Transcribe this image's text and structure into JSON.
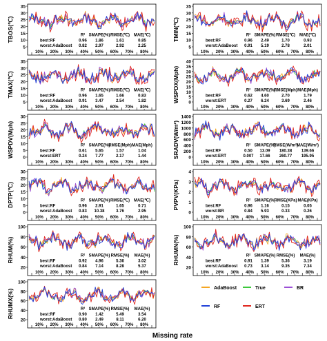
{
  "figure": {
    "xlabel": "Missing rate",
    "x_ticks": [
      "10%",
      "20%",
      "30%",
      "40%",
      "50%",
      "60%",
      "70%",
      "80%"
    ],
    "stats_header": [
      "R²",
      "SMAPE(%)",
      "RMSE(unit)",
      "MAE(unit)"
    ],
    "legend": [
      {
        "name": "AdaBoost",
        "color": "#f5a623"
      },
      {
        "name": "True",
        "color": "#3cc83c"
      },
      {
        "name": "BR",
        "color": "#9b4fd6"
      },
      {
        "name": "RF",
        "color": "#1f3fd8"
      },
      {
        "name": "ERT",
        "color": "#e0241c"
      }
    ]
  },
  "chart_data": [
    {
      "type": "line",
      "id": "tbos",
      "ylabel": "TBOS(℃)",
      "unit": "℃",
      "yticks": [
        5,
        10,
        15,
        20,
        25,
        30,
        35
      ],
      "ylim": [
        5,
        35
      ],
      "base": 23,
      "amp": 6,
      "best": {
        "label": "best:RF",
        "r2": "0.96",
        "smape": "1.86",
        "rmse": "1.61",
        "mae": "0.85"
      },
      "worst": {
        "label": "worst:AdaBoost",
        "r2": "0.82",
        "smape": "2.97",
        "rmse": "2.92",
        "mae": "2.25"
      }
    },
    {
      "type": "line",
      "id": "tmin",
      "ylabel": "TMIN(℃)",
      "unit": "℃",
      "yticks": [
        5,
        10,
        15,
        20,
        25,
        30,
        35
      ],
      "ylim": [
        5,
        35
      ],
      "base": 19,
      "amp": 6,
      "best": {
        "label": "best:RF",
        "r2": "0.96",
        "smape": "2.49",
        "rmse": "1.70",
        "mae": "0.93"
      },
      "worst": {
        "label": "worst:AdaBoost",
        "r2": "0.91",
        "smape": "5.19",
        "rmse": "2.78",
        "mae": "2.01"
      }
    },
    {
      "type": "line",
      "id": "tmax",
      "ylabel": "TMAX(℃)",
      "unit": "℃",
      "yticks": [
        5,
        10,
        15,
        20,
        25,
        30,
        35
      ],
      "ylim": [
        5,
        35
      ],
      "base": 24,
      "amp": 6,
      "best": {
        "label": "best:RF",
        "r2": "0.96",
        "smape": "1.65",
        "rmse": "1.66",
        "mae": "0.83"
      },
      "worst": {
        "label": "worst:AdaBoost",
        "r2": "0.91",
        "smape": "3.47",
        "rmse": "2.54",
        "mae": "1.82"
      }
    },
    {
      "type": "line",
      "id": "wspdx",
      "ylabel": "WSPDX(Mph)",
      "unit": "Mph",
      "yticks": [
        0,
        5,
        10,
        15,
        20,
        25,
        30,
        35,
        40
      ],
      "ylim": [
        0,
        40
      ],
      "base": 9,
      "amp": 4,
      "best": {
        "label": "best:RF",
        "r2": "0.62",
        "smape": "4.60",
        "rmse": "2.70",
        "mae": "1.79"
      },
      "worst": {
        "label": "worst:ERT",
        "r2": "0.27",
        "smape": "6.24",
        "rmse": "3.69",
        "mae": "2.46"
      }
    },
    {
      "type": "line",
      "id": "wspdv",
      "ylabel": "WSPDV(Mph)",
      "unit": "Mph",
      "yticks": [
        0,
        5,
        10,
        15,
        20,
        25,
        30
      ],
      "ylim": [
        0,
        30
      ],
      "base": 5,
      "amp": 3,
      "best": {
        "label": "best:RF",
        "r2": "0.61",
        "smape": "5.65",
        "rmse": "1.57",
        "mae": "1.04"
      },
      "worst": {
        "label": "worst:ERT",
        "r2": "0.24",
        "smape": "7.77",
        "rmse": "2.17",
        "mae": "1.44"
      }
    },
    {
      "type": "line",
      "id": "sradv",
      "ylabel": "SRADV(W/m²)",
      "unit": "W/m²",
      "yticks": [
        0,
        200,
        400,
        600,
        800,
        1000,
        1200,
        1400
      ],
      "ylim": [
        0,
        1400
      ],
      "base": 550,
      "amp": 350,
      "best": {
        "label": "best:RF",
        "r2": "0.50",
        "smape": "13.09",
        "rmse": "180.38",
        "mae": "139.66"
      },
      "worst": {
        "label": "worst:ERT",
        "r2": "0.007",
        "smape": "17.66",
        "rmse": "260.77",
        "mae": "195.95"
      }
    },
    {
      "type": "line",
      "id": "dptp",
      "ylabel": "DPTP(℃)",
      "unit": "℃",
      "yticks": [
        0,
        5,
        10,
        15,
        20,
        25,
        30
      ],
      "ylim": [
        0,
        30
      ],
      "base": 21,
      "amp": 4,
      "best": {
        "label": "best:RF",
        "r2": "0.96",
        "smape": "2.91",
        "rmse": "1.65",
        "mae": "0.71"
      },
      "worst": {
        "label": "worst:AdaBoost",
        "r2": "0.83",
        "smape": "10.38",
        "rmse": "3.76",
        "mae": "2.95"
      }
    },
    {
      "type": "line",
      "id": "pvpv",
      "ylabel": "PVPV(KPa)",
      "unit": "KPa",
      "yticks": [
        0,
        1,
        2,
        3,
        4
      ],
      "ylim": [
        0,
        4
      ],
      "base": 2.3,
      "amp": 0.5,
      "best": {
        "label": "best:RF",
        "r2": "0.96",
        "smape": "1.16",
        "rmse": "0.15",
        "mae": "0.05"
      },
      "worst": {
        "label": "worst:BR",
        "r2": "0.84",
        "smape": "5.93",
        "rmse": "0.33",
        "mae": "0.26"
      }
    },
    {
      "type": "line",
      "id": "rhum",
      "ylabel": "RHUM(%)",
      "unit": "%",
      "yticks": [
        20,
        40,
        60,
        80,
        100
      ],
      "ylim": [
        20,
        100
      ],
      "base": 66,
      "amp": 20,
      "best": {
        "label": "best:RF",
        "r2": "0.92",
        "smape": "4.96",
        "rmse": "5.36",
        "mae": "3.02"
      },
      "worst": {
        "label": "worst:AdaBoost",
        "r2": "0.84",
        "smape": "7.14",
        "rmse": "8.28",
        "mae": "5.37"
      }
    },
    {
      "type": "line",
      "id": "rhumn",
      "ylabel": "RHUMN(%)",
      "unit": "%",
      "yticks": [
        20,
        40,
        60,
        80,
        100
      ],
      "ylim": [
        20,
        100
      ],
      "base": 58,
      "amp": 24,
      "best": {
        "label": "best:RF",
        "r2": "0.91",
        "smape": "1.39",
        "rmse": "5.36",
        "mae": "3.19"
      },
      "worst": {
        "label": "worst:AdaBoost",
        "r2": "0.73",
        "smape": "3.14",
        "rmse": "9.35",
        "mae": "7.34"
      }
    },
    {
      "type": "line",
      "id": "rhumx",
      "ylabel": "RHUMX(%)",
      "unit": "%",
      "yticks": [
        20,
        40,
        60,
        80,
        100
      ],
      "ylim": [
        20,
        100
      ],
      "base": 75,
      "amp": 15,
      "best": {
        "label": "best:RF",
        "r2": "0.90",
        "smape": "1.42",
        "rmse": "5.49",
        "mae": "3.54"
      },
      "worst": {
        "label": "worst:AdaBoost",
        "r2": "0.80",
        "smape": "2.49",
        "rmse": "8.11",
        "mae": "6.20"
      }
    }
  ]
}
